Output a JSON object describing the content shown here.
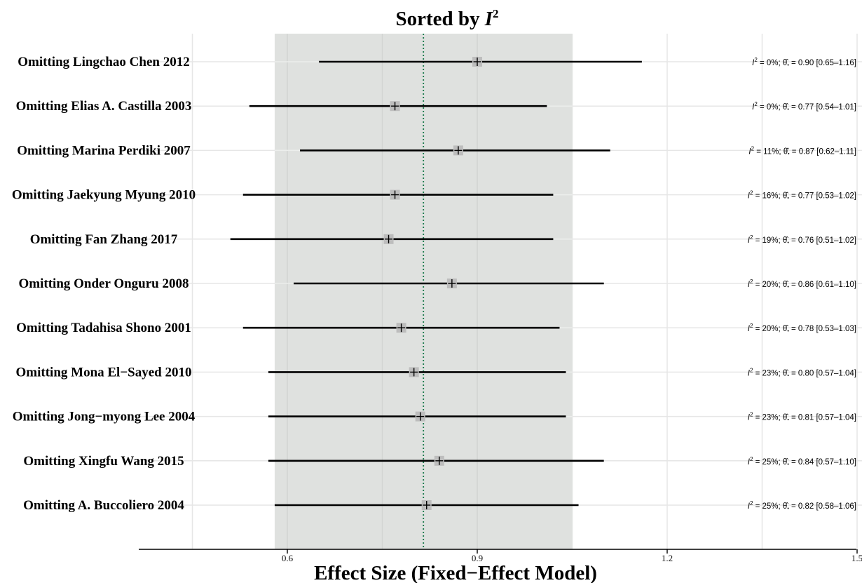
{
  "chart_data": {
    "type": "forest",
    "title_prefix": "Sorted by ",
    "title_var": "I",
    "title_sup": "2",
    "xlabel": "Effect Size (Fixed−Effect Model)",
    "xlim": [
      0.37,
      1.5
    ],
    "xticks": [
      "0.6",
      "0.9",
      "1.2",
      "1.5"
    ],
    "xtick_values": [
      0.6,
      0.9,
      1.2,
      1.5
    ],
    "band": [
      0.58,
      1.05
    ],
    "overall": 0.815,
    "grid": true,
    "colors": {
      "band": "#dfe1df",
      "line": "#000000",
      "marker": "#bdbdbd",
      "overall": "#1a7a4c",
      "grid": "#e6e6e6"
    },
    "studies": [
      {
        "label": "Omitting Lingchao Chen 2012",
        "est": 0.9,
        "lo": 0.65,
        "hi": 1.16,
        "i2": "0%",
        "ci_text": "0.90 [0.65–1.16]"
      },
      {
        "label": "Omitting Elias A. Castilla 2003",
        "est": 0.77,
        "lo": 0.54,
        "hi": 1.01,
        "i2": "0%",
        "ci_text": "0.77 [0.54–1.01]"
      },
      {
        "label": "Omitting Marina Perdiki 2007",
        "est": 0.87,
        "lo": 0.62,
        "hi": 1.11,
        "i2": "11%",
        "ci_text": "0.87 [0.62–1.11]"
      },
      {
        "label": "Omitting Jaekyung Myung 2010",
        "est": 0.77,
        "lo": 0.53,
        "hi": 1.02,
        "i2": "16%",
        "ci_text": "0.77 [0.53–1.02]"
      },
      {
        "label": "Omitting Fan Zhang 2017",
        "est": 0.76,
        "lo": 0.51,
        "hi": 1.02,
        "i2": "19%",
        "ci_text": "0.76 [0.51–1.02]"
      },
      {
        "label": "Omitting Onder Onguru 2008",
        "est": 0.86,
        "lo": 0.61,
        "hi": 1.1,
        "i2": "20%",
        "ci_text": "0.86 [0.61–1.10]"
      },
      {
        "label": "Omitting Tadahisa Shono 2001",
        "est": 0.78,
        "lo": 0.53,
        "hi": 1.03,
        "i2": "20%",
        "ci_text": "0.78 [0.53–1.03]"
      },
      {
        "label": "Omitting Mona El−Sayed 2010",
        "est": 0.8,
        "lo": 0.57,
        "hi": 1.04,
        "i2": "23%",
        "ci_text": "0.80 [0.57–1.04]"
      },
      {
        "label": "Omitting Jong−myong Lee 2004",
        "est": 0.81,
        "lo": 0.57,
        "hi": 1.04,
        "i2": "23%",
        "ci_text": "0.81 [0.57–1.04]"
      },
      {
        "label": "Omitting Xingfu Wang 2015",
        "est": 0.84,
        "lo": 0.57,
        "hi": 1.1,
        "i2": "25%",
        "ci_text": "0.84 [0.57–1.10]"
      },
      {
        "label": "Omitting A. Buccoliero  2004",
        "est": 0.82,
        "lo": 0.58,
        "hi": 1.06,
        "i2": "25%",
        "ci_text": "0.82 [0.58–1.06]"
      }
    ]
  }
}
